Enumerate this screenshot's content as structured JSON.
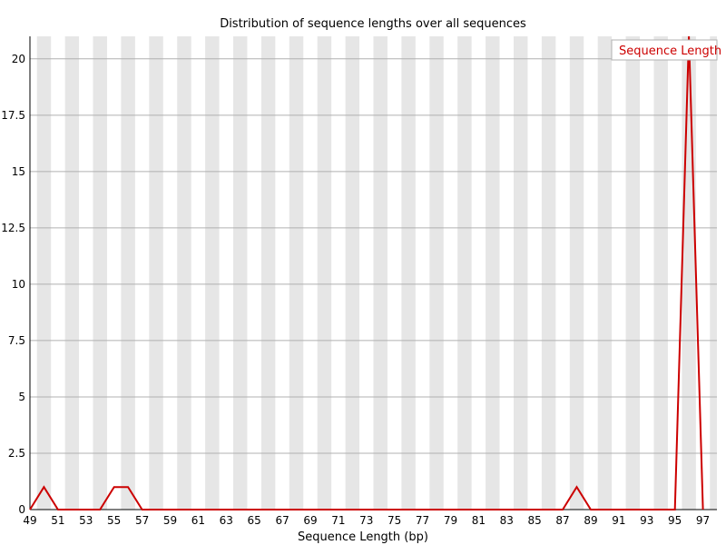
{
  "chart_data": {
    "type": "line",
    "title": "Distribution of sequence lengths over all sequences",
    "xlabel": "Sequence Length (bp)",
    "ylabel": "",
    "xlim": [
      49,
      98
    ],
    "ylim": [
      0,
      21
    ],
    "yticks": [
      0,
      2.5,
      5,
      7.5,
      10,
      12.5,
      15,
      17.5,
      20
    ],
    "ytick_labels": [
      "0",
      "2.5",
      "5",
      "7.5",
      "10",
      "12.5",
      "15",
      "17.5",
      "20"
    ],
    "xticks": [
      49,
      51,
      53,
      55,
      57,
      59,
      61,
      63,
      65,
      67,
      69,
      71,
      73,
      75,
      77,
      79,
      81,
      83,
      85,
      87,
      89,
      91,
      93,
      95,
      97
    ],
    "xtick_labels": [
      "49",
      "51",
      "53",
      "55",
      "57",
      "59",
      "61",
      "63",
      "65",
      "67",
      "69",
      "71",
      "73",
      "75",
      "77",
      "79",
      "81",
      "83",
      "85",
      "87",
      "89",
      "91",
      "93",
      "95",
      "97"
    ],
    "grid": true,
    "legend": "top-right",
    "series": [
      {
        "name": "Sequence Length",
        "color": "#cc0000",
        "x": [
          49,
          50,
          51,
          52,
          53,
          54,
          55,
          56,
          57,
          58,
          59,
          60,
          61,
          62,
          63,
          64,
          65,
          66,
          67,
          68,
          69,
          70,
          71,
          72,
          73,
          74,
          75,
          76,
          77,
          78,
          79,
          80,
          81,
          82,
          83,
          84,
          85,
          86,
          87,
          88,
          89,
          90,
          91,
          92,
          93,
          94,
          95,
          96,
          97
        ],
        "y": [
          0,
          1,
          0,
          0,
          0,
          0,
          1,
          1,
          0,
          0,
          0,
          0,
          0,
          0,
          0,
          0,
          0,
          0,
          0,
          0,
          0,
          0,
          0,
          0,
          0,
          0,
          0,
          0,
          0,
          0,
          0,
          0,
          0,
          0,
          0,
          0,
          0,
          0,
          0,
          1,
          0,
          0,
          0,
          0,
          0,
          0,
          0,
          21,
          0
        ]
      }
    ],
    "colors": {
      "stripe": "#e6e6e6",
      "gridline": "#b0b0b0",
      "axis": "#000000",
      "legend_border": "#b0b0b0"
    }
  }
}
